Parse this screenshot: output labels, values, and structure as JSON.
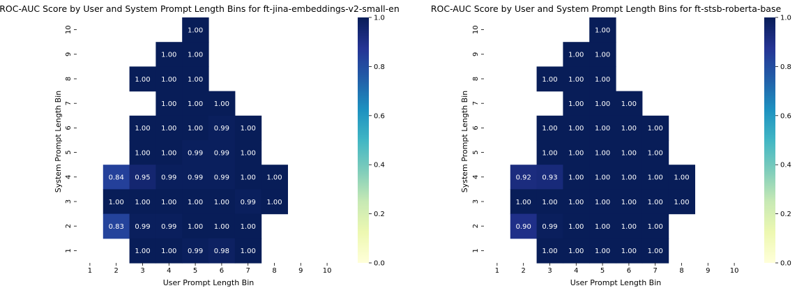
{
  "chart_data": [
    {
      "type": "heatmap",
      "title": "ROC-AUC Score by User and System Prompt Length Bins for ft-jina-embeddings-v2-small-en",
      "xlabel": "User Prompt Length Bin",
      "ylabel": "System Prompt Length Bin",
      "x": [
        1,
        2,
        3,
        4,
        5,
        6,
        7,
        8,
        9,
        10
      ],
      "y": [
        1,
        2,
        3,
        4,
        5,
        6,
        7,
        8,
        9,
        10
      ],
      "y_order": "top-to-bottom descending",
      "value_format": "2 decimals",
      "colormap": "YlGnBu",
      "colorbar": {
        "range": [
          0.0,
          1.0
        ],
        "ticks": [
          "0.0",
          "0.2",
          "0.4",
          "0.6",
          "0.8",
          "1.0"
        ],
        "placement": "right"
      },
      "cells": [
        {
          "x": 5,
          "y": 10,
          "value": 1.0
        },
        {
          "x": 4,
          "y": 9,
          "value": 1.0
        },
        {
          "x": 5,
          "y": 9,
          "value": 1.0
        },
        {
          "x": 3,
          "y": 8,
          "value": 1.0
        },
        {
          "x": 4,
          "y": 8,
          "value": 1.0
        },
        {
          "x": 5,
          "y": 8,
          "value": 1.0
        },
        {
          "x": 4,
          "y": 7,
          "value": 1.0
        },
        {
          "x": 5,
          "y": 7,
          "value": 1.0
        },
        {
          "x": 6,
          "y": 7,
          "value": 1.0
        },
        {
          "x": 3,
          "y": 6,
          "value": 1.0
        },
        {
          "x": 4,
          "y": 6,
          "value": 1.0
        },
        {
          "x": 5,
          "y": 6,
          "value": 1.0
        },
        {
          "x": 6,
          "y": 6,
          "value": 0.99
        },
        {
          "x": 7,
          "y": 6,
          "value": 1.0
        },
        {
          "x": 3,
          "y": 5,
          "value": 1.0
        },
        {
          "x": 4,
          "y": 5,
          "value": 1.0
        },
        {
          "x": 5,
          "y": 5,
          "value": 0.99
        },
        {
          "x": 6,
          "y": 5,
          "value": 0.99
        },
        {
          "x": 7,
          "y": 5,
          "value": 1.0
        },
        {
          "x": 2,
          "y": 4,
          "value": 0.84
        },
        {
          "x": 3,
          "y": 4,
          "value": 0.95
        },
        {
          "x": 4,
          "y": 4,
          "value": 0.99
        },
        {
          "x": 5,
          "y": 4,
          "value": 0.99
        },
        {
          "x": 6,
          "y": 4,
          "value": 0.99
        },
        {
          "x": 7,
          "y": 4,
          "value": 1.0
        },
        {
          "x": 8,
          "y": 4,
          "value": 1.0
        },
        {
          "x": 2,
          "y": 3,
          "value": 1.0
        },
        {
          "x": 3,
          "y": 3,
          "value": 1.0
        },
        {
          "x": 4,
          "y": 3,
          "value": 1.0
        },
        {
          "x": 5,
          "y": 3,
          "value": 1.0
        },
        {
          "x": 6,
          "y": 3,
          "value": 1.0
        },
        {
          "x": 7,
          "y": 3,
          "value": 0.99
        },
        {
          "x": 8,
          "y": 3,
          "value": 1.0
        },
        {
          "x": 2,
          "y": 2,
          "value": 0.83
        },
        {
          "x": 3,
          "y": 2,
          "value": 0.99
        },
        {
          "x": 4,
          "y": 2,
          "value": 0.99
        },
        {
          "x": 5,
          "y": 2,
          "value": 1.0
        },
        {
          "x": 6,
          "y": 2,
          "value": 1.0
        },
        {
          "x": 7,
          "y": 2,
          "value": 1.0
        },
        {
          "x": 3,
          "y": 1,
          "value": 1.0
        },
        {
          "x": 4,
          "y": 1,
          "value": 1.0
        },
        {
          "x": 5,
          "y": 1,
          "value": 0.99
        },
        {
          "x": 6,
          "y": 1,
          "value": 0.98
        },
        {
          "x": 7,
          "y": 1,
          "value": 1.0
        }
      ]
    },
    {
      "type": "heatmap",
      "title": "ROC-AUC Score by User and System Prompt Length Bins for ft-stsb-roberta-base",
      "xlabel": "User Prompt Length Bin",
      "ylabel": "System Prompt Length Bin",
      "x": [
        1,
        2,
        3,
        4,
        5,
        6,
        7,
        8,
        9,
        10
      ],
      "y": [
        1,
        2,
        3,
        4,
        5,
        6,
        7,
        8,
        9,
        10
      ],
      "y_order": "top-to-bottom descending",
      "value_format": "2 decimals",
      "colormap": "YlGnBu",
      "colorbar": {
        "range": [
          0.0,
          1.0
        ],
        "ticks": [
          "0.0",
          "0.2",
          "0.4",
          "0.6",
          "0.8",
          "1.0"
        ],
        "placement": "right"
      },
      "cells": [
        {
          "x": 5,
          "y": 10,
          "value": 1.0
        },
        {
          "x": 4,
          "y": 9,
          "value": 1.0
        },
        {
          "x": 5,
          "y": 9,
          "value": 1.0
        },
        {
          "x": 3,
          "y": 8,
          "value": 1.0
        },
        {
          "x": 4,
          "y": 8,
          "value": 1.0
        },
        {
          "x": 5,
          "y": 8,
          "value": 1.0
        },
        {
          "x": 4,
          "y": 7,
          "value": 1.0
        },
        {
          "x": 5,
          "y": 7,
          "value": 1.0
        },
        {
          "x": 6,
          "y": 7,
          "value": 1.0
        },
        {
          "x": 3,
          "y": 6,
          "value": 1.0
        },
        {
          "x": 4,
          "y": 6,
          "value": 1.0
        },
        {
          "x": 5,
          "y": 6,
          "value": 1.0
        },
        {
          "x": 6,
          "y": 6,
          "value": 1.0
        },
        {
          "x": 7,
          "y": 6,
          "value": 1.0
        },
        {
          "x": 3,
          "y": 5,
          "value": 1.0
        },
        {
          "x": 4,
          "y": 5,
          "value": 1.0
        },
        {
          "x": 5,
          "y": 5,
          "value": 1.0
        },
        {
          "x": 6,
          "y": 5,
          "value": 1.0
        },
        {
          "x": 7,
          "y": 5,
          "value": 1.0
        },
        {
          "x": 2,
          "y": 4,
          "value": 0.92
        },
        {
          "x": 3,
          "y": 4,
          "value": 0.93
        },
        {
          "x": 4,
          "y": 4,
          "value": 1.0
        },
        {
          "x": 5,
          "y": 4,
          "value": 1.0
        },
        {
          "x": 6,
          "y": 4,
          "value": 1.0
        },
        {
          "x": 7,
          "y": 4,
          "value": 1.0
        },
        {
          "x": 8,
          "y": 4,
          "value": 1.0
        },
        {
          "x": 2,
          "y": 3,
          "value": 1.0
        },
        {
          "x": 3,
          "y": 3,
          "value": 1.0
        },
        {
          "x": 4,
          "y": 3,
          "value": 1.0
        },
        {
          "x": 5,
          "y": 3,
          "value": 1.0
        },
        {
          "x": 6,
          "y": 3,
          "value": 1.0
        },
        {
          "x": 7,
          "y": 3,
          "value": 1.0
        },
        {
          "x": 8,
          "y": 3,
          "value": 1.0
        },
        {
          "x": 2,
          "y": 2,
          "value": 0.9
        },
        {
          "x": 3,
          "y": 2,
          "value": 0.99
        },
        {
          "x": 4,
          "y": 2,
          "value": 1.0
        },
        {
          "x": 5,
          "y": 2,
          "value": 1.0
        },
        {
          "x": 6,
          "y": 2,
          "value": 1.0
        },
        {
          "x": 7,
          "y": 2,
          "value": 1.0
        },
        {
          "x": 3,
          "y": 1,
          "value": 1.0
        },
        {
          "x": 4,
          "y": 1,
          "value": 1.0
        },
        {
          "x": 5,
          "y": 1,
          "value": 1.0
        },
        {
          "x": 6,
          "y": 1,
          "value": 1.0
        },
        {
          "x": 7,
          "y": 1,
          "value": 1.0
        }
      ]
    }
  ]
}
